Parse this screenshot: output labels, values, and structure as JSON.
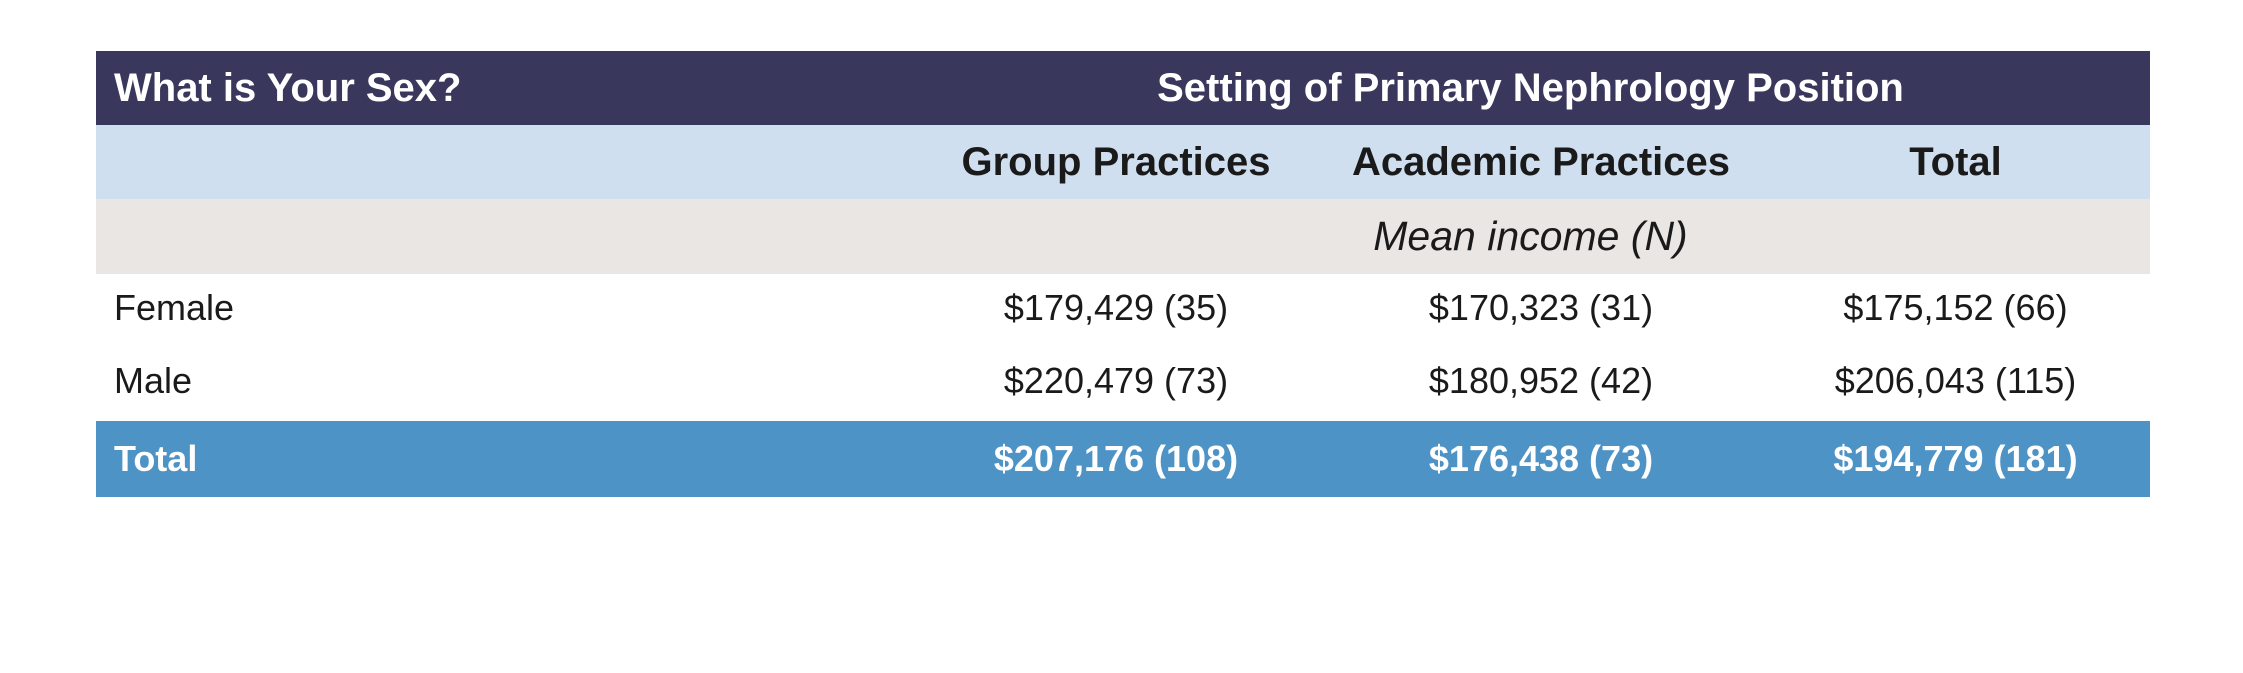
{
  "table": {
    "header_left": "What is Your Sex?",
    "header_right": "Setting of Primary Nephrology Position",
    "columns": [
      "",
      "Group Practices",
      "Academic Practices",
      "Total"
    ],
    "measure_label": "Mean income (N)",
    "rows": [
      {
        "label": "Female",
        "group": "$179,429 (35)",
        "academic": "$170,323 (31)",
        "total": "$175,152 (66)"
      },
      {
        "label": "Male",
        "group": "$220,479 (73)",
        "academic": "$180,952 (42)",
        "total": "$206,043 (115)"
      }
    ],
    "total_row": {
      "label": "Total",
      "group": "$207,176 (108)",
      "academic": "$176,438 (73)",
      "total": "$194,779 (181)"
    }
  },
  "colors": {
    "header_bg": "#39375c",
    "subheader_bg": "#cfdff0",
    "measure_bg": "#e9e6e4",
    "total_bg": "#4e93c6"
  }
}
